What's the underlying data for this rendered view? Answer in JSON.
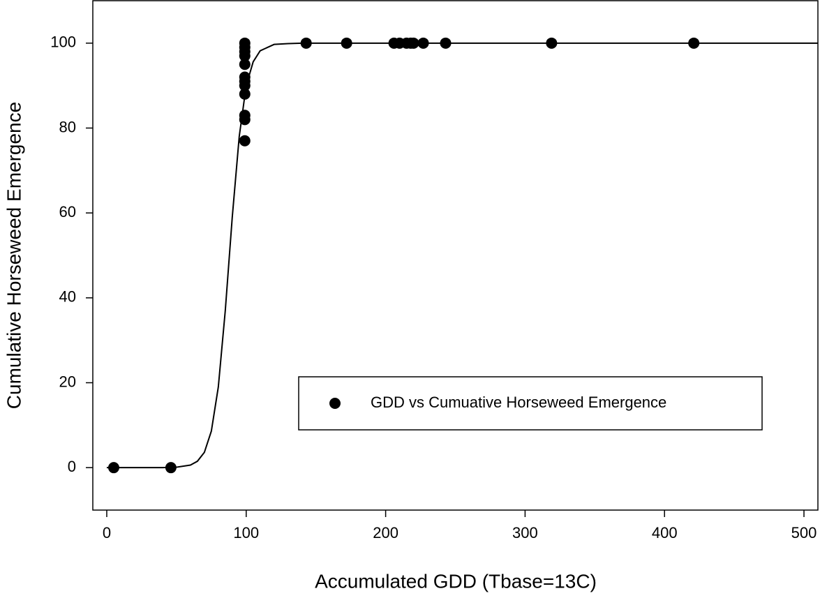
{
  "chart_data": {
    "type": "scatter",
    "xlabel": "Accumulated GDD (Tbase=13C)",
    "ylabel": "Cumulative Horseweed Emergence",
    "xlim": [
      -10,
      510
    ],
    "ylim": [
      -10,
      110
    ],
    "xticks": [
      0,
      100,
      200,
      300,
      400,
      500
    ],
    "yticks": [
      0,
      20,
      40,
      60,
      80,
      100
    ],
    "legend": "lower right",
    "series": [
      {
        "name": "GDD vs Cumuative Horseweed Emergence",
        "type": "scatter",
        "color": "#000000",
        "x": [
          5,
          46,
          99,
          99,
          99,
          99,
          99,
          99,
          99,
          99,
          99,
          99,
          99,
          99,
          143,
          172,
          206,
          210,
          215,
          218,
          220,
          227,
          243,
          319,
          421
        ],
        "values": [
          0,
          0,
          77,
          82,
          83,
          88,
          90,
          91,
          92,
          95,
          97,
          98,
          99,
          100,
          100,
          100,
          100,
          100,
          100,
          100,
          100,
          100,
          100,
          100,
          100
        ]
      },
      {
        "type": "line",
        "color": "#000000",
        "x": [
          0,
          40,
          50,
          60,
          65,
          70,
          75,
          80,
          85,
          90,
          95,
          100,
          105,
          110,
          120,
          130,
          140,
          510
        ],
        "values": [
          0,
          0,
          0.1,
          0.6,
          1.5,
          3.6,
          8.6,
          19,
          37,
          59,
          78,
          90,
          95.6,
          98.2,
          99.7,
          99.9,
          100,
          100
        ]
      }
    ]
  }
}
